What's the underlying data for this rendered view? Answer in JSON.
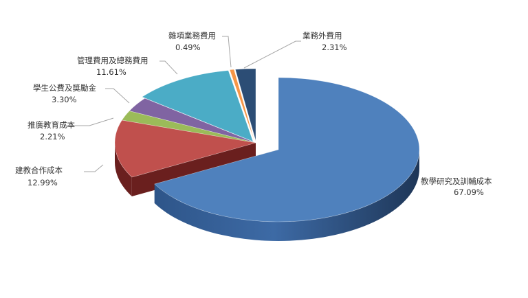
{
  "chart_data": {
    "type": "pie",
    "style": "3d-exploded",
    "title": "",
    "slices": [
      {
        "label": "教學研究及訓輔成本",
        "pct_text": "67.09%",
        "value": 67.09,
        "color": "#4F81BD",
        "side_color": "#1F3A60"
      },
      {
        "label": "建教合作成本",
        "pct_text": "12.99%",
        "value": 12.99,
        "color": "#C0504D",
        "side_color": "#6A1F1E"
      },
      {
        "label": "推廣教育成本",
        "pct_text": "2.21%",
        "value": 2.21,
        "color": "#9BBB59",
        "side_color": "#4F6427"
      },
      {
        "label": "學生公費及獎勵金",
        "pct_text": "3.30%",
        "value": 3.3,
        "color": "#8064A2",
        "side_color": "#3F2E56"
      },
      {
        "label": "管理費用及總務費用",
        "pct_text": "11.61%",
        "value": 11.61,
        "color": "#4BACC6",
        "side_color": "#1E5868"
      },
      {
        "label": "雜項業務費用",
        "pct_text": "0.49%",
        "value": 0.49,
        "color": "#F79646",
        "side_color": "#8A4B17"
      },
      {
        "label": "業務外費用",
        "pct_text": "2.31%",
        "value": 2.31,
        "color": "#2C4D75",
        "side_color": "#15253A"
      }
    ]
  }
}
